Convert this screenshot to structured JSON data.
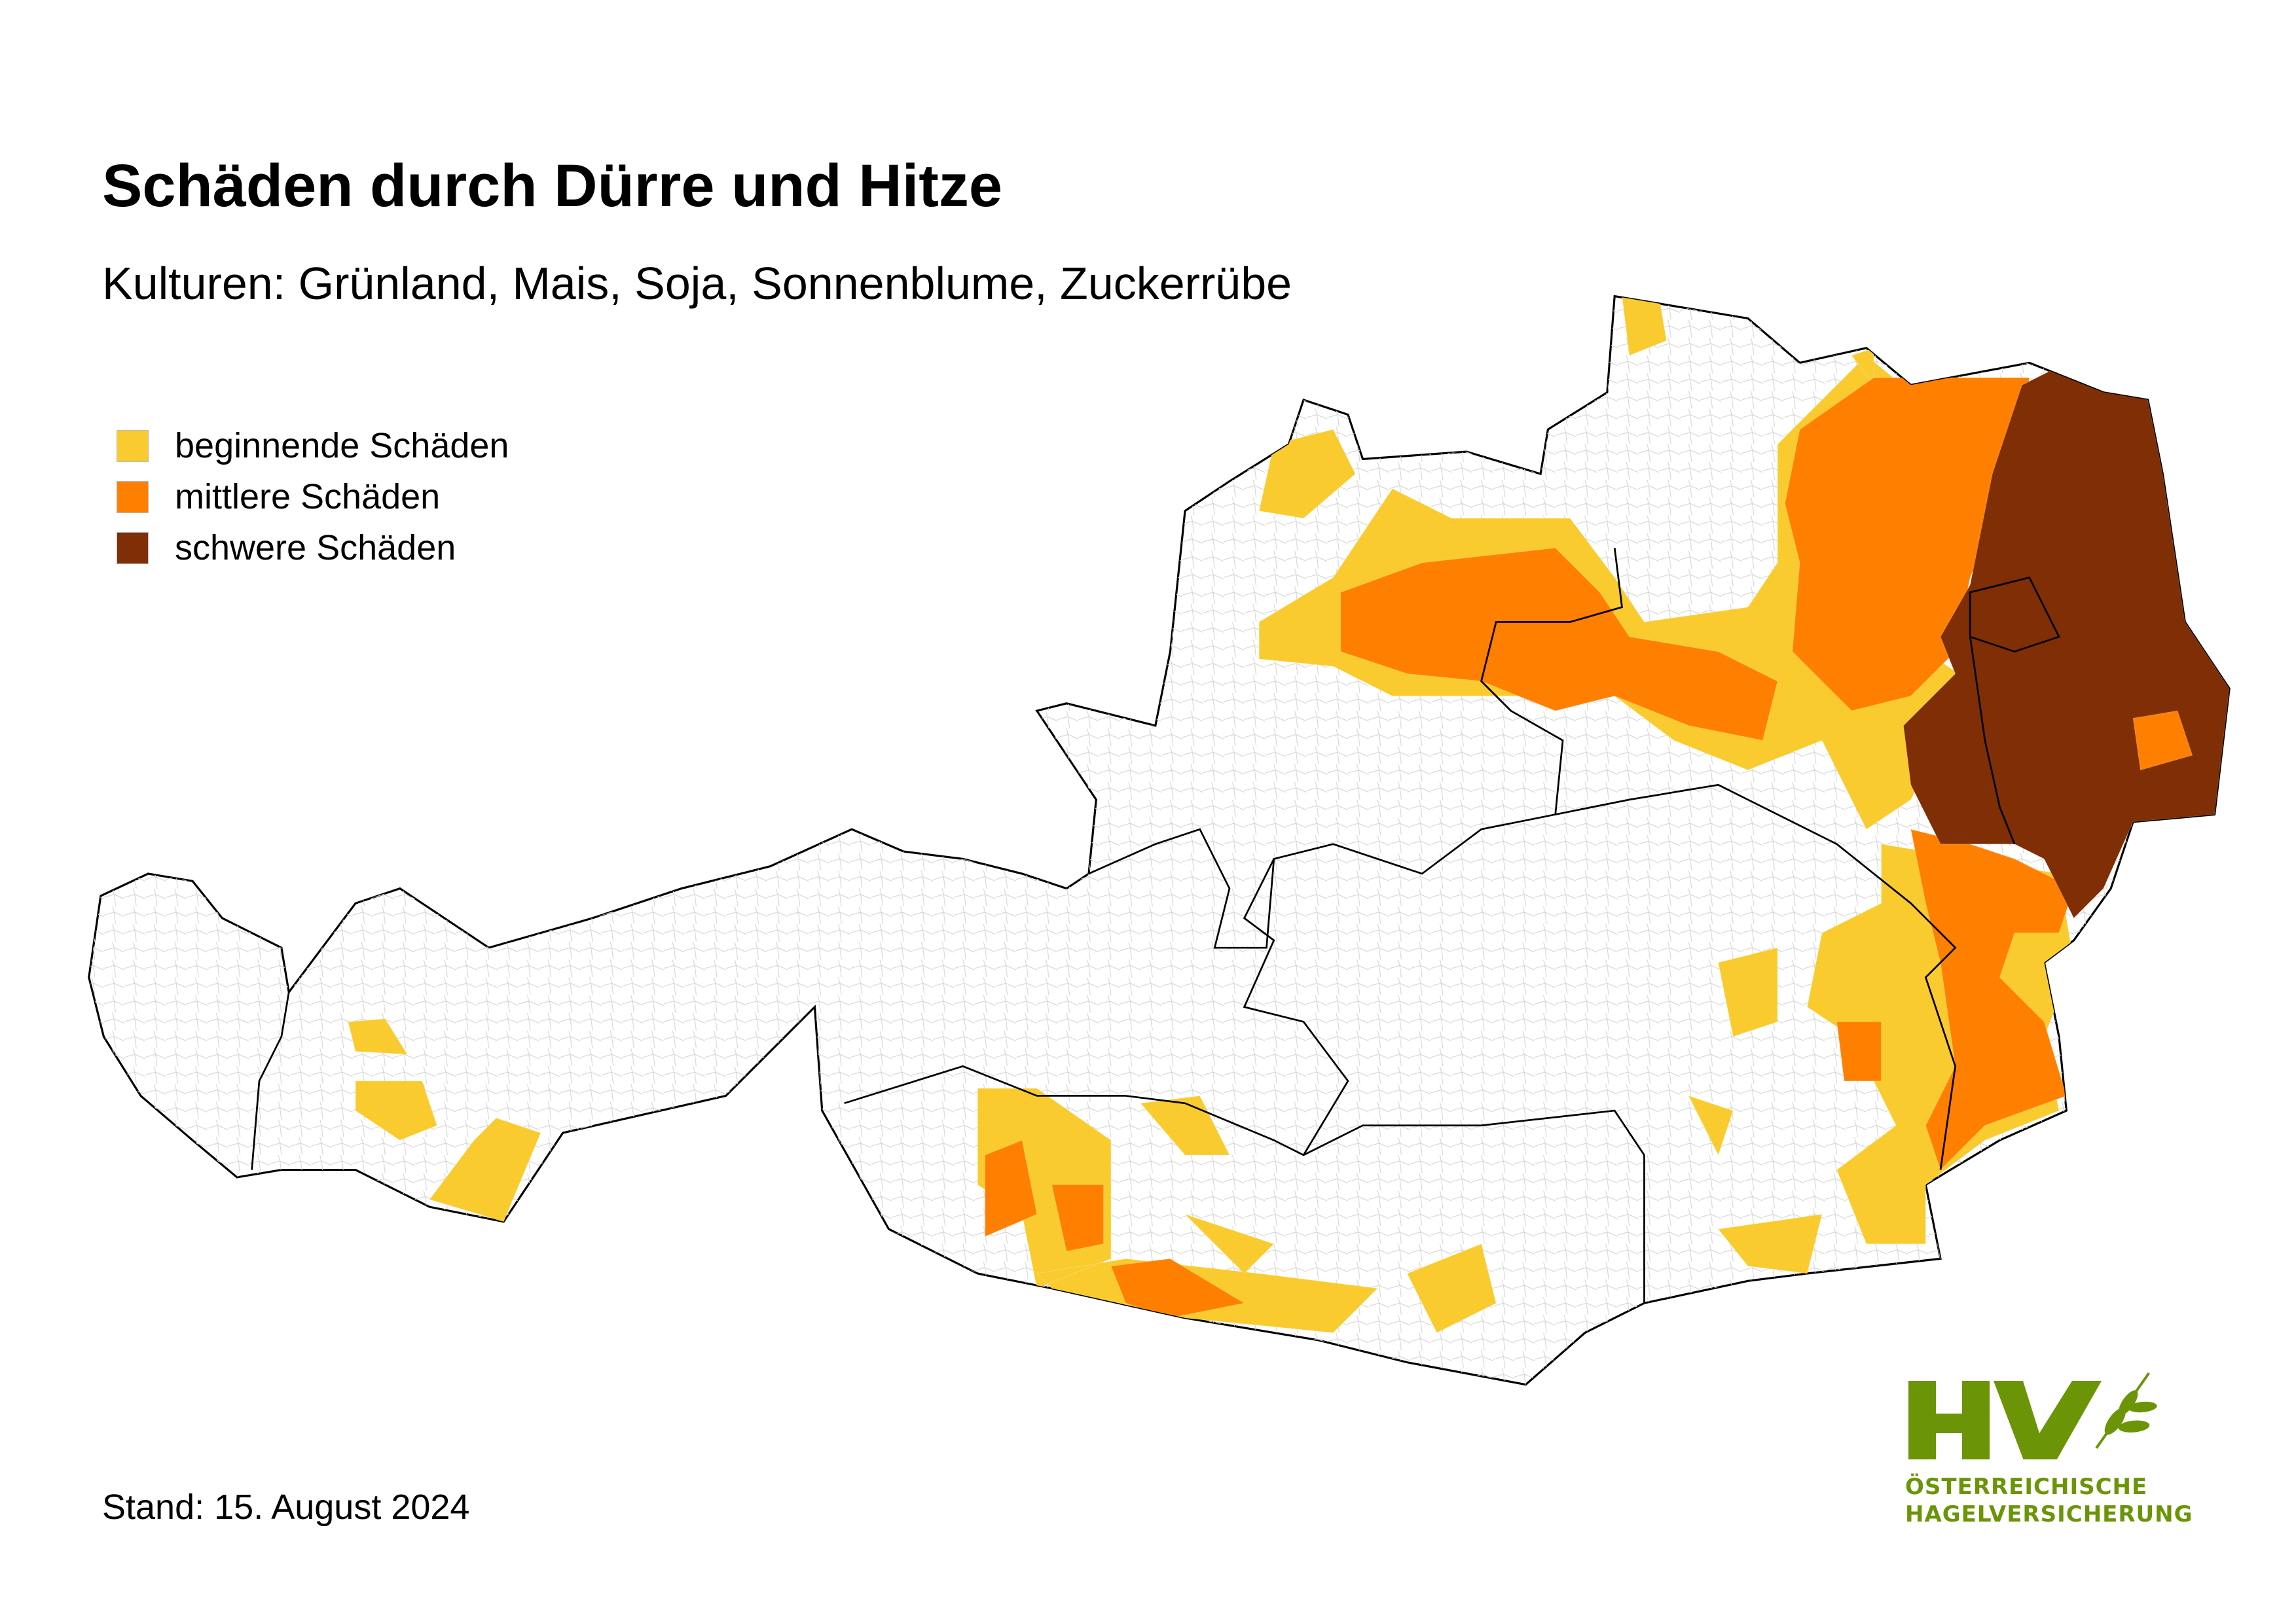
{
  "title": "Schäden durch Dürre und Hitze",
  "subtitle": "Kulturen: Grünland, Mais, Soja, Sonnenblume, Zuckerrübe",
  "legend": [
    {
      "label": "beginnende Schäden",
      "color": "#f9cb2f"
    },
    {
      "label": "mittlere Schäden",
      "color": "#ff8000"
    },
    {
      "label": "schwere Schäden",
      "color": "#7f2e05"
    }
  ],
  "stand": "Stand: 15. August 2024",
  "logo": {
    "mark": "HV",
    "line1": "ÖSTERREICHISCHE",
    "line2": "HAGELVERSICHERUNG",
    "color": "#6b9507"
  },
  "map": {
    "country": "Austria",
    "base_color": "#ffffff",
    "border_color": "#000000",
    "municipality_color": "#d0d0d0"
  }
}
